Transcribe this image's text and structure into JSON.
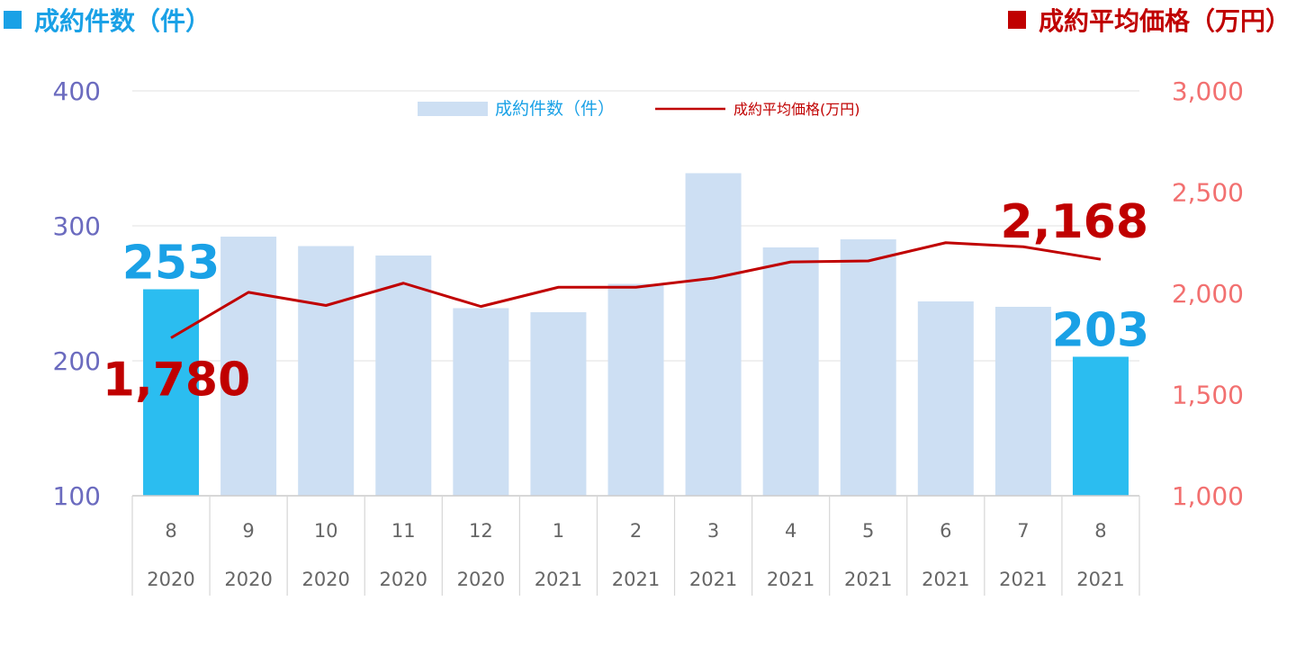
{
  "headers": {
    "left_title": "成約件数（件）",
    "right_title": "成約平均価格（万円）",
    "left_color": "#1aa1e6",
    "right_color": "#c00000"
  },
  "chart_data": {
    "type": "bar",
    "categories": [
      {
        "month": "8",
        "year": "2020"
      },
      {
        "month": "9",
        "year": "2020"
      },
      {
        "month": "10",
        "year": "2020"
      },
      {
        "month": "11",
        "year": "2020"
      },
      {
        "month": "12",
        "year": "2020"
      },
      {
        "month": "1",
        "year": "2021"
      },
      {
        "month": "2",
        "year": "2021"
      },
      {
        "month": "3",
        "year": "2021"
      },
      {
        "month": "4",
        "year": "2021"
      },
      {
        "month": "5",
        "year": "2021"
      },
      {
        "month": "6",
        "year": "2021"
      },
      {
        "month": "7",
        "year": "2021"
      },
      {
        "month": "8",
        "year": "2021"
      }
    ],
    "series": [
      {
        "name": "成約件数（件）",
        "type": "bar",
        "axis": "left",
        "values": [
          253,
          292,
          285,
          278,
          239,
          236,
          257,
          339,
          284,
          290,
          244,
          240,
          203
        ],
        "color": "#cddff3",
        "highlight_color": "#2bbdf0",
        "highlight_indices": [
          0,
          12
        ]
      },
      {
        "name": "成約平均価格(万円)",
        "type": "line",
        "axis": "right",
        "values": [
          1780,
          2005,
          1940,
          2050,
          1935,
          2030,
          2030,
          2075,
          2155,
          2160,
          2250,
          2230,
          2168
        ],
        "color": "#c00000"
      }
    ],
    "left_axis": {
      "min": 100,
      "max": 400,
      "ticks": [
        "400",
        "300",
        "200",
        "100"
      ],
      "color": "#6b6bbf"
    },
    "right_axis": {
      "min": 1000,
      "max": 3000,
      "ticks": [
        "3,000",
        "2,500",
        "2,000",
        "1,500",
        "1,000"
      ],
      "color": "#f27070"
    },
    "annotations": {
      "first_bar_label": "253",
      "last_bar_label": "203",
      "first_line_label": "1,780",
      "last_line_label": "2,168",
      "bar_label_color": "#1aa1e6",
      "line_label_color": "#c00000"
    },
    "legend": {
      "position": "top-center"
    },
    "grid": true
  }
}
